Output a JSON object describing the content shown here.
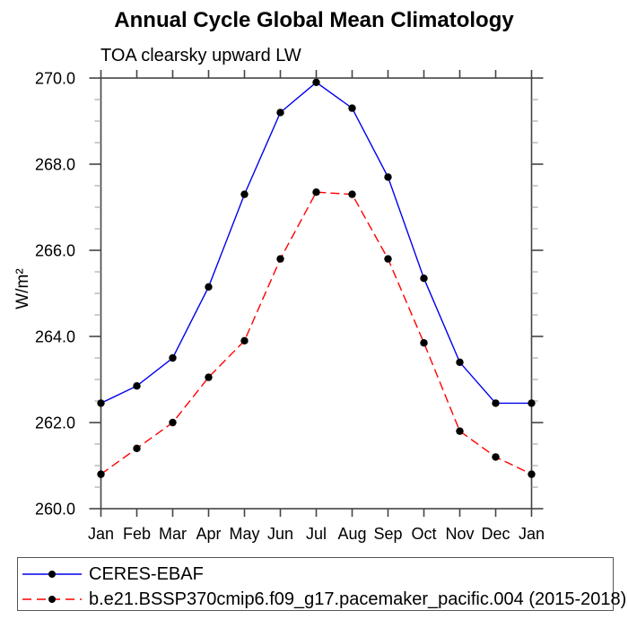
{
  "chart_data": {
    "type": "line",
    "title": "Annual Cycle Global Mean Climatology",
    "subtitle": "TOA clearsky upward LW",
    "ylabel": "W/m²",
    "xlabel": "",
    "categories": [
      "Jan",
      "Feb",
      "Mar",
      "Apr",
      "May",
      "Jun",
      "Jul",
      "Aug",
      "Sep",
      "Oct",
      "Nov",
      "Dec",
      "Jan"
    ],
    "ylim": [
      260.0,
      270.0
    ],
    "ytick_major": 2.0,
    "ytick_minor": 0.5,
    "ytick_label_format_decimals": 1,
    "grid": "off",
    "legend_position": "bottom",
    "series": [
      {
        "name": "CERES-EBAF",
        "color": "#0000ee",
        "style": "solid",
        "marker": "black-dot",
        "values": [
          262.45,
          262.85,
          263.5,
          265.15,
          267.3,
          269.2,
          269.9,
          269.3,
          267.7,
          265.35,
          263.4,
          262.45,
          262.45
        ]
      },
      {
        "name": "b.e21.BSSP370cmip6.f09_g17.pacemaker_pacific.004 (2015-2018)",
        "color": "#ff0000",
        "style": "dashed",
        "marker": "black-dot",
        "values": [
          260.8,
          261.4,
          262.0,
          263.05,
          263.9,
          265.8,
          267.35,
          267.3,
          265.8,
          263.85,
          261.8,
          261.2,
          260.8
        ]
      }
    ]
  }
}
